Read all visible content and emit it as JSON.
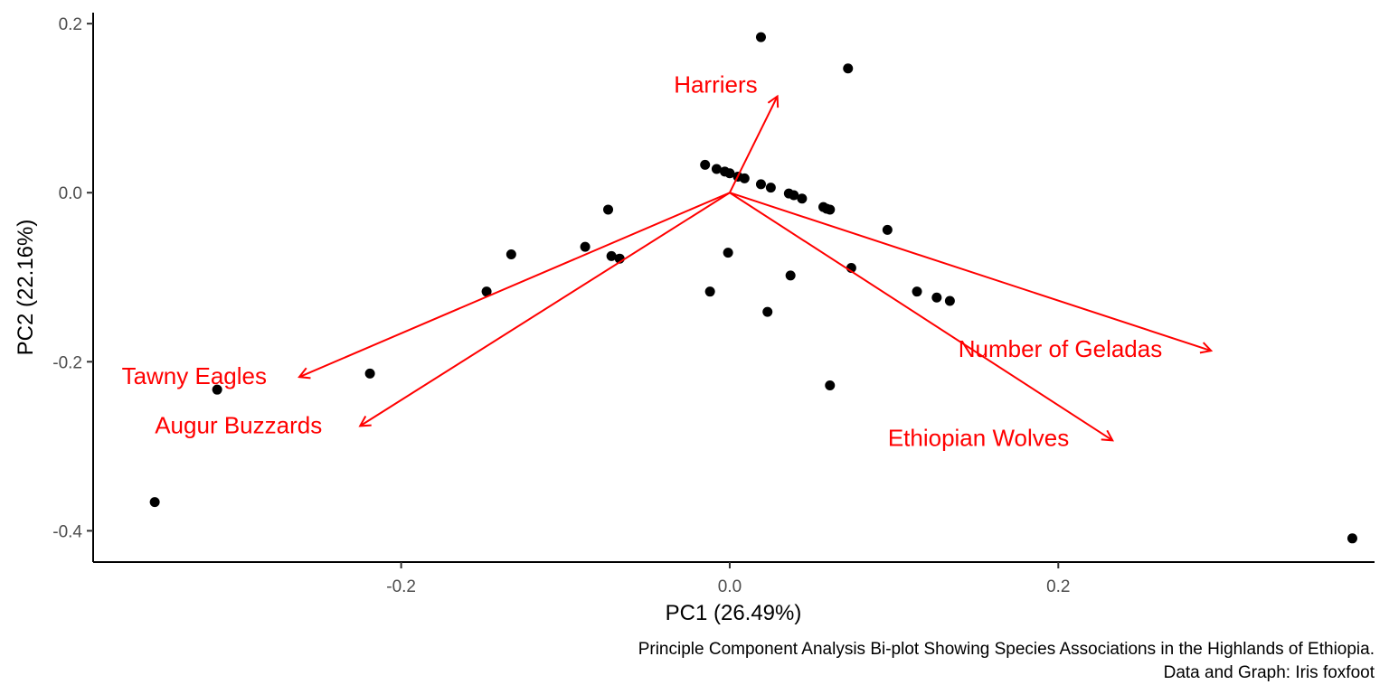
{
  "chart_data": {
    "type": "scatter",
    "xlabel": "PC1 (26.49%)",
    "ylabel": "PC2 (22.16%)",
    "xlim": [
      -0.3875,
      0.3925
    ],
    "ylim": [
      -0.437,
      0.213
    ],
    "x_ticks": [
      {
        "value": -0.2,
        "label": "-0.2"
      },
      {
        "value": 0.0,
        "label": "0.0"
      },
      {
        "value": 0.2,
        "label": "0.2"
      }
    ],
    "y_ticks": [
      {
        "value": 0.2,
        "label": "0.2"
      },
      {
        "value": 0.0,
        "label": "0.0"
      },
      {
        "value": -0.2,
        "label": "-0.2"
      },
      {
        "value": -0.4,
        "label": "-0.4"
      }
    ],
    "grid": false,
    "point_color": "#000000",
    "vector_color": "#ff0000",
    "points": [
      {
        "x": 0.019,
        "y": 0.184
      },
      {
        "x": 0.072,
        "y": 0.147
      },
      {
        "x": -0.015,
        "y": 0.033
      },
      {
        "x": -0.008,
        "y": 0.028
      },
      {
        "x": -0.003,
        "y": 0.025
      },
      {
        "x": 0.0,
        "y": 0.023
      },
      {
        "x": 0.005,
        "y": 0.019
      },
      {
        "x": 0.009,
        "y": 0.017
      },
      {
        "x": 0.019,
        "y": 0.01
      },
      {
        "x": 0.025,
        "y": 0.006
      },
      {
        "x": 0.036,
        "y": -0.001
      },
      {
        "x": 0.039,
        "y": -0.003
      },
      {
        "x": 0.044,
        "y": -0.007
      },
      {
        "x": 0.057,
        "y": -0.017
      },
      {
        "x": 0.059,
        "y": -0.019
      },
      {
        "x": 0.061,
        "y": -0.02
      },
      {
        "x": 0.096,
        "y": -0.044
      },
      {
        "x": -0.074,
        "y": -0.02
      },
      {
        "x": -0.088,
        "y": -0.064
      },
      {
        "x": -0.133,
        "y": -0.073
      },
      {
        "x": -0.072,
        "y": -0.075
      },
      {
        "x": -0.067,
        "y": -0.078
      },
      {
        "x": -0.001,
        "y": -0.071
      },
      {
        "x": 0.074,
        "y": -0.089
      },
      {
        "x": 0.037,
        "y": -0.098
      },
      {
        "x": -0.148,
        "y": -0.117
      },
      {
        "x": -0.012,
        "y": -0.117
      },
      {
        "x": 0.114,
        "y": -0.117
      },
      {
        "x": 0.126,
        "y": -0.124
      },
      {
        "x": 0.134,
        "y": -0.128
      },
      {
        "x": 0.023,
        "y": -0.141
      },
      {
        "x": -0.219,
        "y": -0.214
      },
      {
        "x": -0.312,
        "y": -0.233
      },
      {
        "x": 0.061,
        "y": -0.228
      },
      {
        "x": -0.35,
        "y": -0.366
      },
      {
        "x": 0.379,
        "y": -0.409
      }
    ],
    "vectors": [
      {
        "name": "Harriers",
        "x": 0.029,
        "y": 0.114
      },
      {
        "name": "Tawny Eagles",
        "x": -0.262,
        "y": -0.218
      },
      {
        "name": "Augur Buzzards",
        "x": -0.225,
        "y": -0.276
      },
      {
        "name": "Number of Geladas",
        "x": 0.293,
        "y": -0.187
      },
      {
        "name": "Ethiopian Wolves",
        "x": 0.233,
        "y": -0.293
      }
    ],
    "caption": [
      "Principle Component Analysis Bi-plot Showing Species Associations in the Highlands of Ethiopia.",
      "Data and Graph: Iris foxfoot"
    ]
  }
}
